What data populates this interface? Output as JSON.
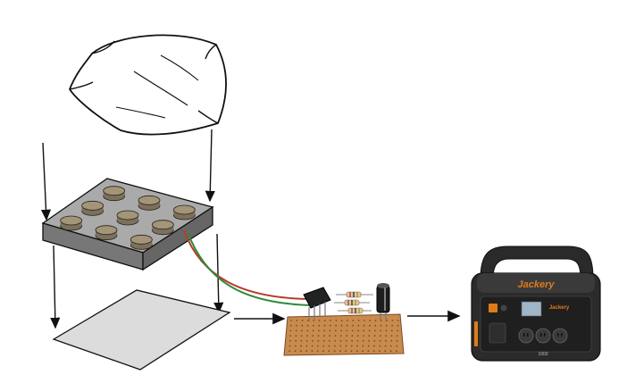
{
  "diagram": {
    "components": [
      {
        "id": "pillow",
        "icon": "pillow-icon"
      },
      {
        "id": "sensor-box",
        "icon": "piezo-array-icon",
        "disc_count": 9
      },
      {
        "id": "base-plate",
        "icon": "plate-icon"
      },
      {
        "id": "circuit",
        "icon": "circuit-board-icon",
        "parts": [
          "bridge-rectifier",
          "resistors",
          "capacitor",
          "perfboard"
        ]
      },
      {
        "id": "power-station",
        "icon": "power-station-icon",
        "brand_text": "Jackery",
        "panel_text": "Jackery",
        "model_text": "1000"
      }
    ],
    "wires": {
      "red": "#b83a2e",
      "green": "#2f8a3a"
    },
    "colors": {
      "box_fill": "#8f8f8f",
      "disc_fill": "#a49478",
      "board_fill": "#c98a4e",
      "station_body": "#2b2b2b",
      "station_accent": "#e07b1a"
    }
  }
}
